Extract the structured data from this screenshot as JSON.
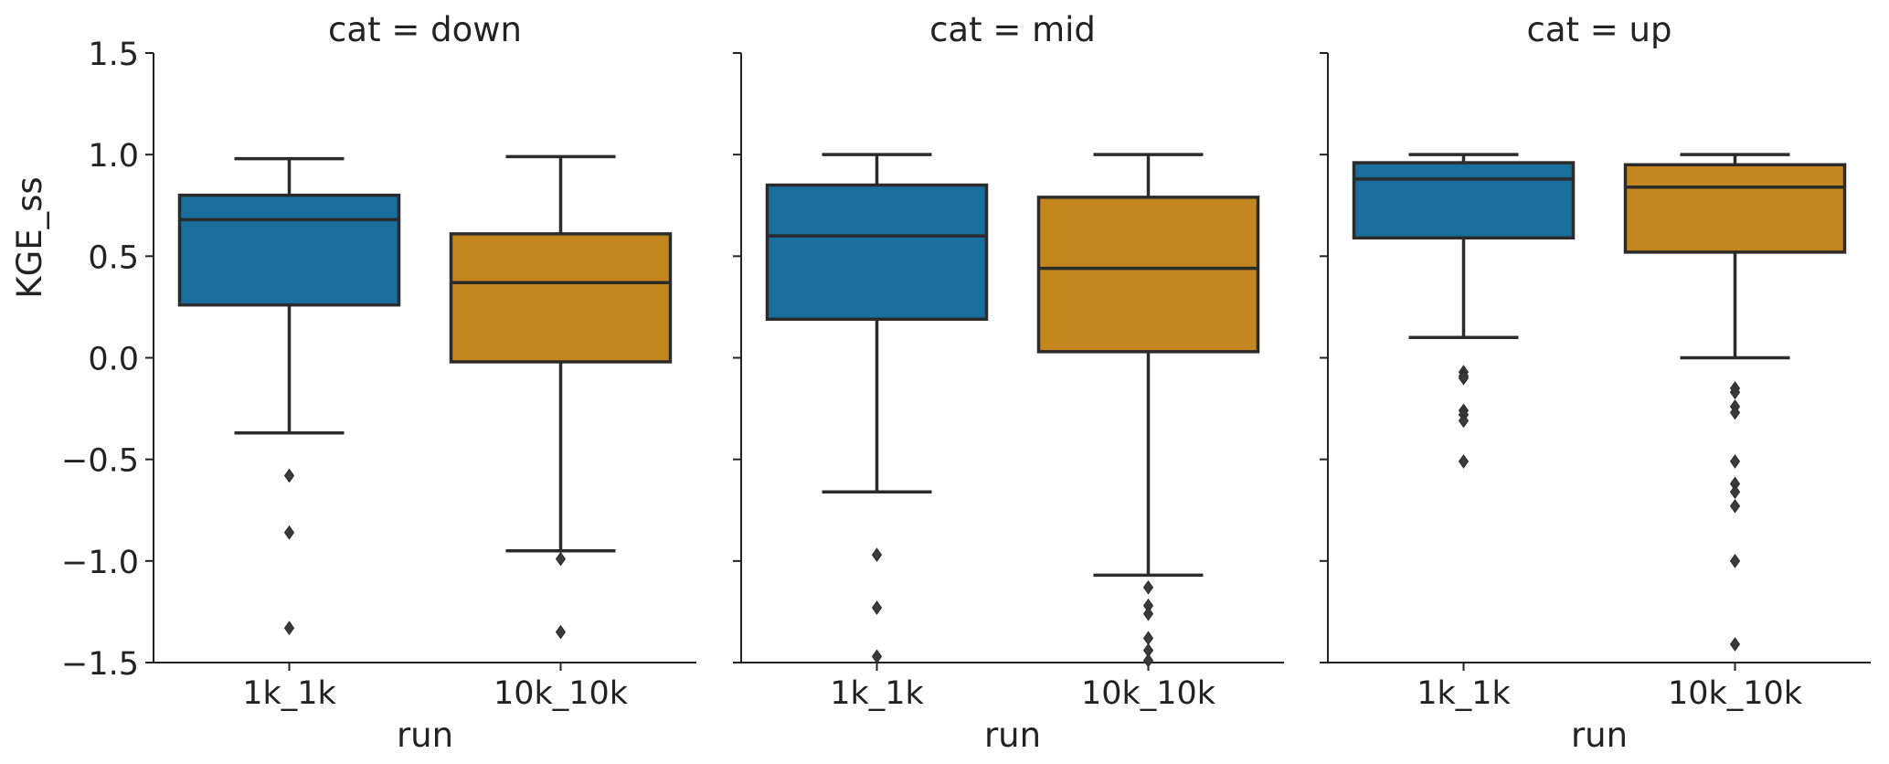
{
  "chart_data": {
    "type": "box",
    "ylabel": "KGE_ss",
    "xlabel": "run",
    "ylim": [
      -1.5,
      1.5
    ],
    "yticks": [
      -1.5,
      -1.0,
      -0.5,
      0.0,
      0.5,
      1.0,
      1.5
    ],
    "ytick_labels": [
      "−1.5",
      "−1.0",
      "−0.5",
      "0.0",
      "0.5",
      "1.0",
      "1.5"
    ],
    "categories": [
      "1k_1k",
      "10k_10k"
    ],
    "colors": {
      "1k_1k": "#1a6e9e",
      "10k_10k": "#c4871f"
    },
    "grid": false,
    "panels": [
      {
        "title": "cat = down",
        "boxes": [
          {
            "run": "1k_1k",
            "whisker_low": -0.37,
            "q1": 0.26,
            "median": 0.68,
            "q3": 0.8,
            "whisker_high": 0.98,
            "outliers": [
              -0.58,
              -0.86,
              -1.33
            ]
          },
          {
            "run": "10k_10k",
            "whisker_low": -0.95,
            "q1": -0.02,
            "median": 0.37,
            "q3": 0.61,
            "whisker_high": 0.99,
            "outliers": [
              -0.99,
              -1.35
            ]
          }
        ]
      },
      {
        "title": "cat = mid",
        "boxes": [
          {
            "run": "1k_1k",
            "whisker_low": -0.66,
            "q1": 0.19,
            "median": 0.6,
            "q3": 0.85,
            "whisker_high": 1.0,
            "outliers": [
              -0.97,
              -1.23,
              -1.47
            ]
          },
          {
            "run": "10k_10k",
            "whisker_low": -1.07,
            "q1": 0.03,
            "median": 0.44,
            "q3": 0.79,
            "whisker_high": 1.0,
            "outliers": [
              -1.13,
              -1.22,
              -1.26,
              -1.38,
              -1.44,
              -1.49
            ]
          }
        ]
      },
      {
        "title": "cat = up",
        "boxes": [
          {
            "run": "1k_1k",
            "whisker_low": 0.1,
            "q1": 0.59,
            "median": 0.88,
            "q3": 0.96,
            "whisker_high": 1.0,
            "outliers": [
              -0.07,
              -0.09,
              -0.1,
              -0.26,
              -0.28,
              -0.31,
              -0.51
            ]
          },
          {
            "run": "10k_10k",
            "whisker_low": 0.0,
            "q1": 0.52,
            "median": 0.84,
            "q3": 0.95,
            "whisker_high": 1.0,
            "outliers": [
              -0.15,
              -0.17,
              -0.24,
              -0.27,
              -0.51,
              -0.62,
              -0.66,
              -0.73,
              -1.0,
              -1.41
            ]
          }
        ]
      }
    ]
  }
}
